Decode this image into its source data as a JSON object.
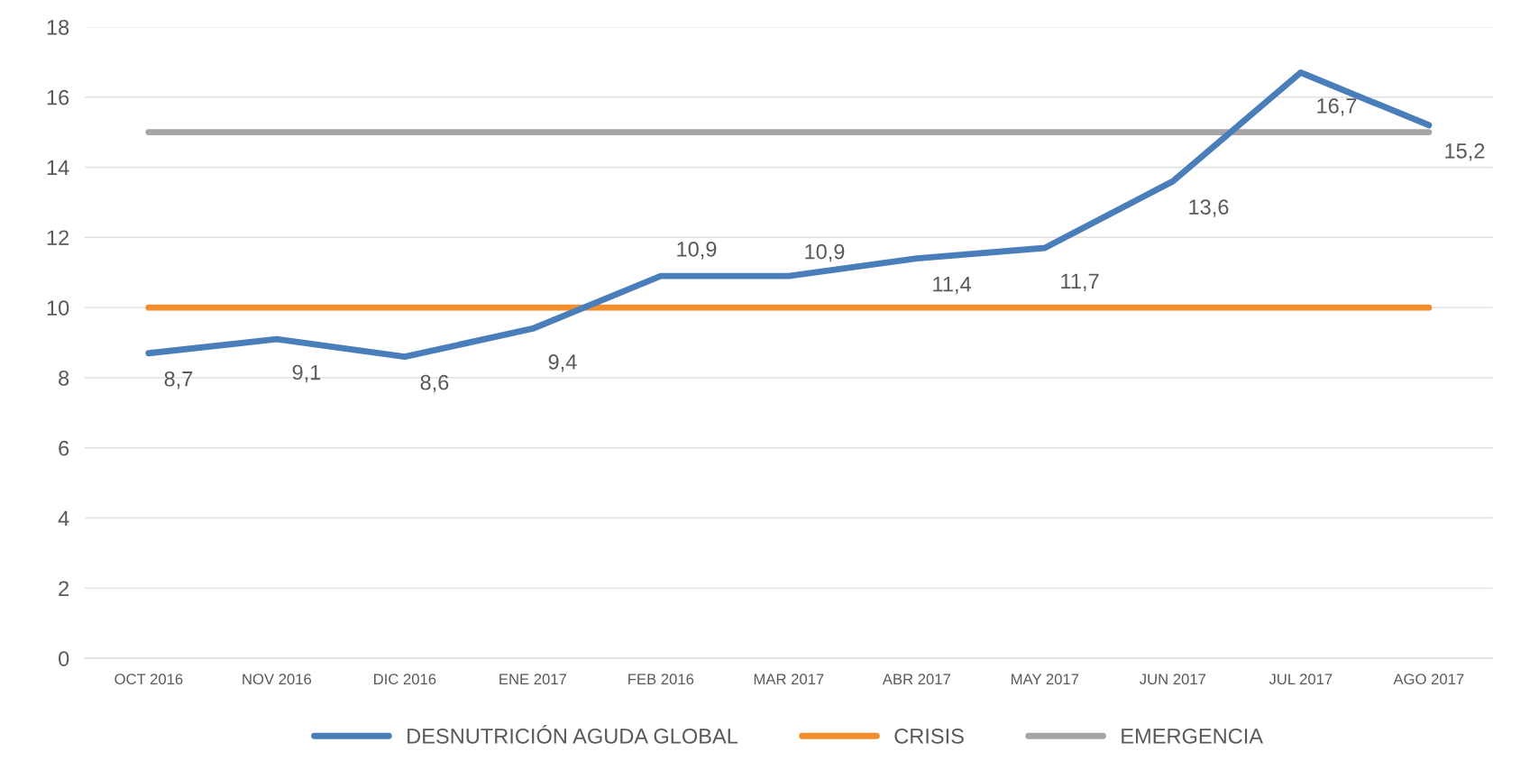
{
  "chart_data": {
    "type": "line",
    "categories": [
      "OCT 2016",
      "NOV 2016",
      "DIC 2016",
      "ENE 2017",
      "FEB 2016",
      "MAR 2017",
      "ABR 2017",
      "MAY 2017",
      "JUN 2017",
      "JUL 2017",
      "AGO 2017"
    ],
    "series": [
      {
        "name": "DESNUTRICIÓN AGUDA GLOBAL",
        "color": "#4a7ebb",
        "values": [
          8.7,
          9.1,
          8.6,
          9.4,
          10.9,
          10.9,
          11.4,
          11.7,
          13.6,
          16.7,
          15.2
        ],
        "value_labels": [
          "8,7",
          "9,1",
          "8,6",
          "9,4",
          "10,9",
          "10,9",
          "11,4",
          "11,7",
          "13,6",
          "16,7",
          "15,2"
        ]
      },
      {
        "name": "CRISIS",
        "color": "#f28e2b",
        "values": [
          10,
          10,
          10,
          10,
          10,
          10,
          10,
          10,
          10,
          10,
          10
        ]
      },
      {
        "name": "EMERGENCIA",
        "color": "#a5a5a5",
        "values": [
          15,
          15,
          15,
          15,
          15,
          15,
          15,
          15,
          15,
          15,
          15
        ]
      }
    ],
    "ylim": [
      0,
      18
    ],
    "yticks": [
      0,
      2,
      4,
      6,
      8,
      10,
      12,
      14,
      16,
      18
    ],
    "grid": "y",
    "legend": "bottom",
    "marker": "none",
    "line_style": "solid"
  }
}
